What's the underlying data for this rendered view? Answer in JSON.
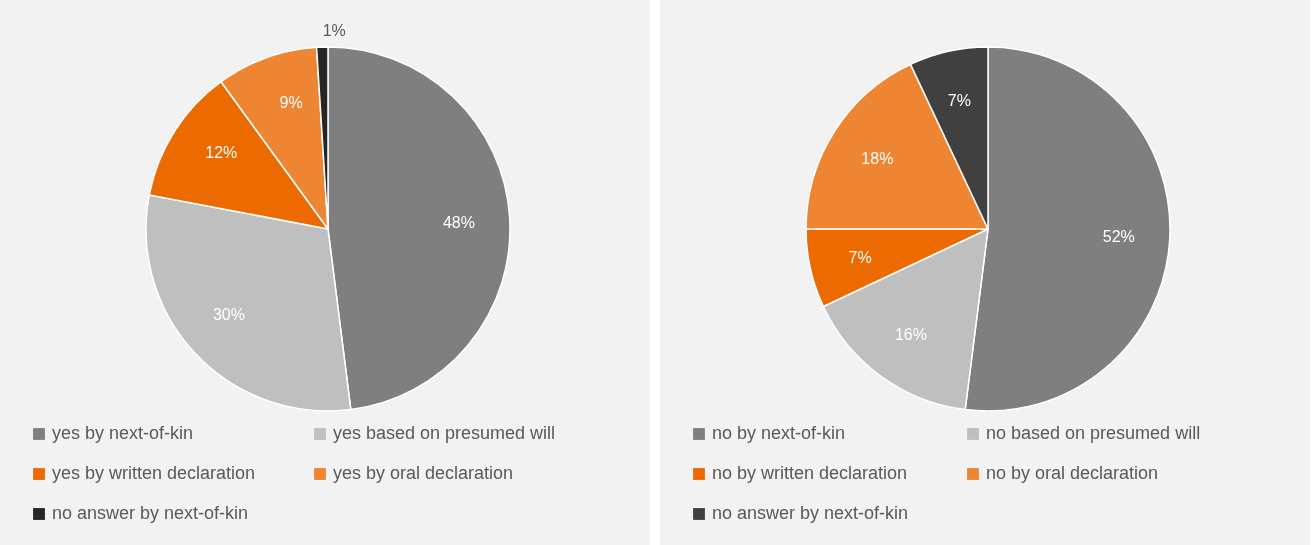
{
  "chart_data": [
    {
      "type": "pie",
      "categories": [
        "yes by next-of-kin",
        "yes based on presumed will",
        "yes by written declaration",
        "yes by oral declaration",
        "no answer by next-of-kin"
      ],
      "values": [
        48,
        30,
        12,
        9,
        1
      ],
      "colors": [
        "#7f7f7f",
        "#bfbfbf",
        "#ec6a00",
        "#ed8532",
        "#262626"
      ],
      "value_labels": [
        "48%",
        "30%",
        "12%",
        "9%",
        "1%"
      ],
      "legend": "bottom"
    },
    {
      "type": "pie",
      "categories": [
        "no by next-of-kin",
        "no based on presumed will",
        "no by written declaration",
        "no by oral declaration",
        "no answer by next-of-kin"
      ],
      "values": [
        52,
        16,
        7,
        18,
        7
      ],
      "colors": [
        "#7f7f7f",
        "#bfbfbf",
        "#ec6a00",
        "#ed8532",
        "#404040"
      ],
      "value_labels": [
        "52%",
        "16%",
        "7%",
        "18%",
        "7%"
      ],
      "legend": "bottom"
    }
  ]
}
